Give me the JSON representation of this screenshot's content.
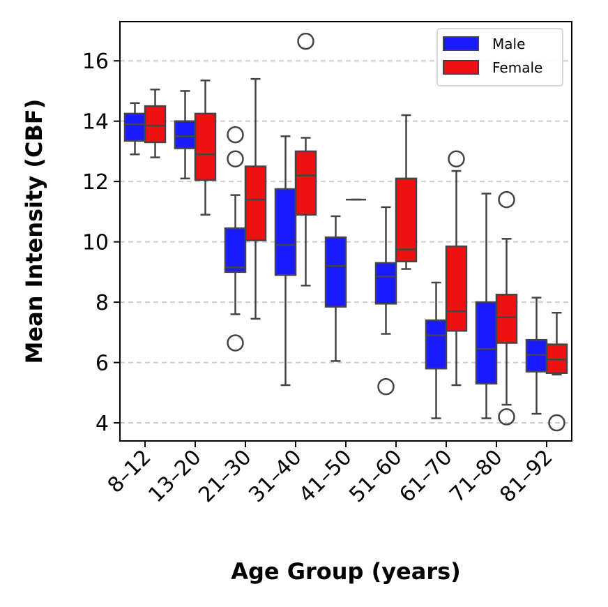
{
  "chart_data": {
    "type": "box",
    "xlabel": "Age Group (years)",
    "ylabel": "Mean Intensity (CBF)",
    "ylim": [
      3.4,
      17.3
    ],
    "yticks": [
      4,
      6,
      8,
      10,
      12,
      14,
      16
    ],
    "grid": "horizontal dashed",
    "legend_position": "top-right",
    "categories": [
      "8–12",
      "13–20",
      "21–30",
      "31–40",
      "41–50",
      "51–60",
      "61–70",
      "71–80",
      "81–92"
    ],
    "series": [
      {
        "name": "Male",
        "color": "#1a1aff",
        "boxes": [
          {
            "whisker_low": 12.9,
            "q1": 13.35,
            "median": 13.9,
            "q3": 14.25,
            "whisker_high": 14.6,
            "outliers": []
          },
          {
            "whisker_low": 12.1,
            "q1": 13.1,
            "median": 13.5,
            "q3": 14.0,
            "whisker_high": 15.0,
            "outliers": []
          },
          {
            "whisker_low": 7.6,
            "q1": 9.0,
            "median": 9.15,
            "q3": 10.45,
            "whisker_high": 11.55,
            "outliers": [
              13.55,
              12.75,
              6.65
            ]
          },
          {
            "whisker_low": 5.25,
            "q1": 8.9,
            "median": 9.9,
            "q3": 11.75,
            "whisker_high": 13.5,
            "outliers": []
          },
          {
            "whisker_low": 6.05,
            "q1": 7.85,
            "median": 9.2,
            "q3": 10.15,
            "whisker_high": 10.85,
            "outliers": []
          },
          {
            "whisker_low": 6.95,
            "q1": 7.95,
            "median": 8.85,
            "q3": 9.3,
            "whisker_high": 11.15,
            "outliers": [
              5.2
            ]
          },
          {
            "whisker_low": 4.15,
            "q1": 5.8,
            "median": 6.9,
            "q3": 7.4,
            "whisker_high": 8.65,
            "outliers": []
          },
          {
            "whisker_low": 4.15,
            "q1": 5.3,
            "median": 6.45,
            "q3": 8.0,
            "whisker_high": 11.6,
            "outliers": []
          },
          {
            "whisker_low": 4.3,
            "q1": 5.7,
            "median": 6.25,
            "q3": 6.75,
            "whisker_high": 8.15,
            "outliers": []
          }
        ]
      },
      {
        "name": "Female",
        "color": "#ee1111",
        "boxes": [
          {
            "whisker_low": 12.8,
            "q1": 13.3,
            "median": 13.85,
            "q3": 14.5,
            "whisker_high": 15.05,
            "outliers": []
          },
          {
            "whisker_low": 10.9,
            "q1": 12.05,
            "median": 12.9,
            "q3": 14.25,
            "whisker_high": 15.35,
            "outliers": []
          },
          {
            "whisker_low": 7.45,
            "q1": 10.05,
            "median": 11.4,
            "q3": 12.5,
            "whisker_high": 15.4,
            "outliers": []
          },
          {
            "whisker_low": 8.55,
            "q1": 10.9,
            "median": 12.2,
            "q3": 13.0,
            "whisker_high": 13.45,
            "outliers": [
              16.65
            ]
          },
          {
            "whisker_low": 11.4,
            "q1": 11.4,
            "median": 11.4,
            "q3": 11.4,
            "whisker_high": 11.4,
            "outliers": []
          },
          {
            "whisker_low": 9.1,
            "q1": 9.35,
            "median": 9.75,
            "q3": 12.1,
            "whisker_high": 14.2,
            "outliers": []
          },
          {
            "whisker_low": 5.25,
            "q1": 7.05,
            "median": 7.7,
            "q3": 9.85,
            "whisker_high": 12.35,
            "outliers": [
              12.75
            ]
          },
          {
            "whisker_low": 4.6,
            "q1": 6.65,
            "median": 7.5,
            "q3": 8.25,
            "whisker_high": 10.1,
            "outliers": [
              11.4,
              4.2
            ]
          },
          {
            "whisker_low": 5.6,
            "q1": 5.65,
            "median": 6.1,
            "q3": 6.6,
            "whisker_high": 7.65,
            "outliers": [
              4.0
            ]
          }
        ]
      }
    ]
  }
}
